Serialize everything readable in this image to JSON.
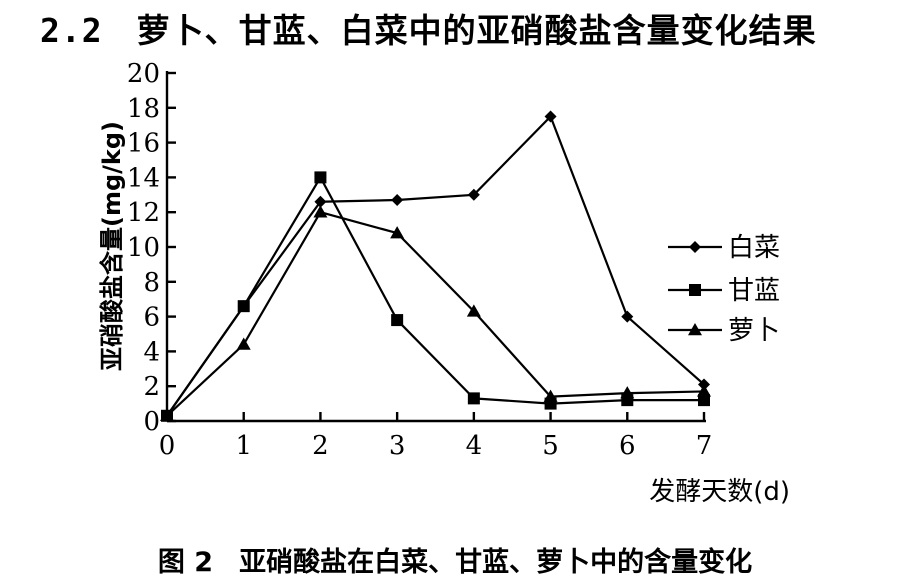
{
  "heading": {
    "number": "2.2",
    "text": "萝卜、甘蓝、白菜中的亚硝酸盐含量变化结果"
  },
  "caption": {
    "figure": "图 2",
    "text": "亚硝酸盐在白菜、甘蓝、萝卜中的含量变化"
  },
  "chart_data": {
    "type": "line",
    "title": "",
    "xlabel": "发酵天数(d)",
    "ylabel": "亚硝酸盐含量(mg/kg)",
    "x": [
      0,
      1,
      2,
      3,
      4,
      5,
      6,
      7
    ],
    "xticks": [
      "0",
      "1",
      "2",
      "3",
      "4",
      "5",
      "6",
      "7"
    ],
    "yticks": [
      "0",
      "2",
      "4",
      "6",
      "8",
      "10",
      "12",
      "14",
      "16",
      "18",
      "20"
    ],
    "xlim": [
      0,
      7
    ],
    "ylim": [
      0,
      20
    ],
    "grid": false,
    "legend_position": "right",
    "series": [
      {
        "name": "白菜",
        "marker": "diamond",
        "values": [
          0.3,
          6.6,
          12.6,
          12.7,
          13.0,
          17.5,
          6.0,
          2.1
        ]
      },
      {
        "name": "甘蓝",
        "marker": "square",
        "values": [
          0.3,
          6.6,
          14.0,
          5.8,
          1.3,
          1.0,
          1.2,
          1.2
        ]
      },
      {
        "name": "萝卜",
        "marker": "triangle",
        "values": [
          0.3,
          4.4,
          12.0,
          10.8,
          6.3,
          1.4,
          1.6,
          1.7
        ]
      }
    ]
  }
}
